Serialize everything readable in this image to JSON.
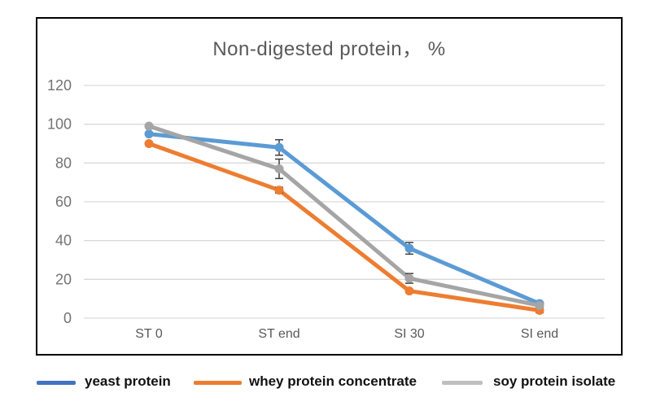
{
  "figure": {
    "title": "Non-digested protein， %"
  },
  "chart_data": {
    "type": "line",
    "title": "Non-digested protein， %",
    "categories": [
      "ST 0",
      "ST end",
      "SI 30",
      "SI end"
    ],
    "series": [
      {
        "name": "yeast protein",
        "color": "#5B9BD5",
        "legend_color": "#4472C4",
        "values": [
          95,
          88,
          36,
          7.5
        ],
        "errors": [
          0.8,
          4.0,
          3.0,
          0.8
        ]
      },
      {
        "name": "whey protein concentrate",
        "color": "#ED7D31",
        "legend_color": "#ED7D31",
        "values": [
          90,
          66,
          14,
          4.0
        ],
        "errors": [
          0.8,
          1.5,
          0.8,
          1.2
        ]
      },
      {
        "name": "soy protein isolate",
        "color": "#A5A5A5",
        "legend_color": "#BFBFBF",
        "values": [
          99,
          77,
          20.5,
          6.5
        ],
        "errors": [
          0.8,
          5.0,
          2.5,
          0.8
        ]
      }
    ],
    "xlabel": "",
    "ylabel": "",
    "ylim": [
      0,
      120
    ],
    "yticks": [
      0,
      20,
      40,
      60,
      80,
      100,
      120
    ],
    "grid": true,
    "legend_position": "bottom",
    "error_bars": true
  },
  "style": {
    "grid_color": "#D9D9D9",
    "tick_text_color": "#737373",
    "x_label_color": "#595959",
    "title_color": "#595959",
    "border_color": "#000000",
    "error_bar_color": "#404040",
    "background": "#FFFFFF"
  }
}
